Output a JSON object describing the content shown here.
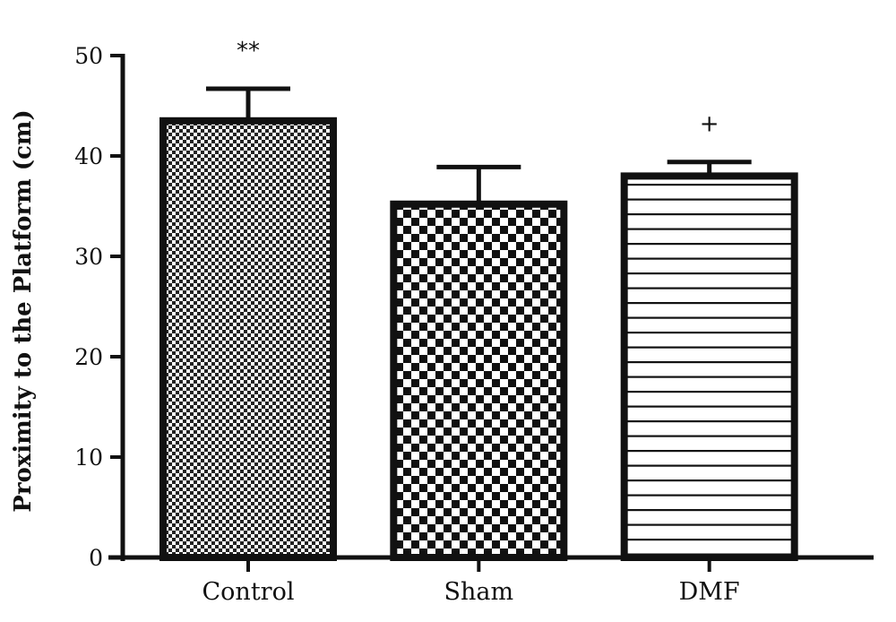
{
  "chart_data": {
    "type": "bar",
    "title": "",
    "xlabel": "",
    "ylabel": "Proximity to the Platform (cm)",
    "ylim": [
      0,
      50
    ],
    "yticks": [
      0,
      10,
      20,
      30,
      40,
      50
    ],
    "categories": [
      "Control",
      "Sham",
      "DMF"
    ],
    "values": [
      43.5,
      35.2,
      38.0
    ],
    "errors": [
      3.2,
      3.7,
      1.4
    ],
    "annotations": [
      "**",
      "",
      "+"
    ],
    "patterns": [
      "fine-checker",
      "coarse-checker",
      "horizontal-lines"
    ],
    "grid": false,
    "legend": "none"
  },
  "colors": {
    "ink": "#111111",
    "background": "#ffffff"
  }
}
